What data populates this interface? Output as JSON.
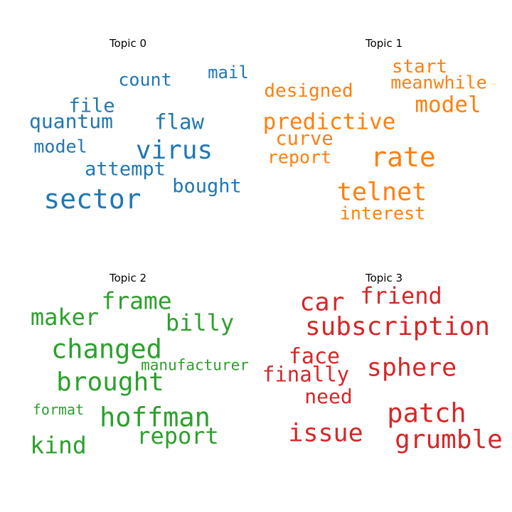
{
  "chart_data": [
    {
      "type": "wordcloud",
      "title": "Topic 0",
      "color": "#1f77b4",
      "words": [
        {
          "text": "sector"
        },
        {
          "text": "virus"
        },
        {
          "text": "quantum"
        },
        {
          "text": "flaw"
        },
        {
          "text": "bought"
        },
        {
          "text": "attempt"
        },
        {
          "text": "file"
        },
        {
          "text": "count"
        },
        {
          "text": "model"
        },
        {
          "text": "mail"
        }
      ]
    },
    {
      "type": "wordcloud",
      "title": "Topic 1",
      "color": "#ff7f0e",
      "words": [
        {
          "text": "rate"
        },
        {
          "text": "telnet"
        },
        {
          "text": "predictive"
        },
        {
          "text": "model"
        },
        {
          "text": "curve"
        },
        {
          "text": "designed"
        },
        {
          "text": "report"
        },
        {
          "text": "start"
        },
        {
          "text": "meanwhile"
        },
        {
          "text": "interest"
        }
      ]
    },
    {
      "type": "wordcloud",
      "title": "Topic 2",
      "color": "#2ca02c",
      "words": [
        {
          "text": "changed"
        },
        {
          "text": "hoffman"
        },
        {
          "text": "brought"
        },
        {
          "text": "frame"
        },
        {
          "text": "maker"
        },
        {
          "text": "billy"
        },
        {
          "text": "report"
        },
        {
          "text": "kind"
        },
        {
          "text": "manufacturer"
        },
        {
          "text": "format"
        }
      ]
    },
    {
      "type": "wordcloud",
      "title": "Topic 3",
      "color": "#d62728",
      "words": [
        {
          "text": "patch"
        },
        {
          "text": "subscription"
        },
        {
          "text": "grumble"
        },
        {
          "text": "sphere"
        },
        {
          "text": "issue"
        },
        {
          "text": "car"
        },
        {
          "text": "friend"
        },
        {
          "text": "face"
        },
        {
          "text": "finally"
        },
        {
          "text": "need"
        }
      ]
    }
  ]
}
